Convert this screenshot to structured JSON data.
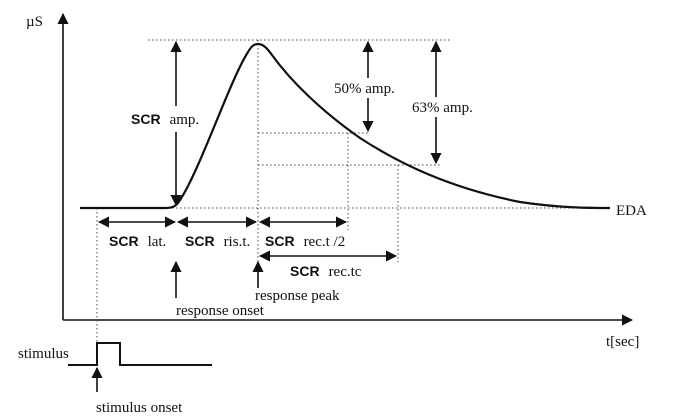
{
  "axis": {
    "y_label": "µS",
    "x_label": "t[sec]"
  },
  "curve": {
    "label": "EDA"
  },
  "labels": {
    "scr_amp": {
      "prefix": "SCR",
      "text": "amp."
    },
    "amp50": "50% amp.",
    "amp63": "63% amp.",
    "scr_lat": {
      "prefix": "SCR",
      "text": "lat."
    },
    "scr_ris": {
      "prefix": "SCR",
      "text": "ris.t."
    },
    "scr_rec2": {
      "prefix": "SCR",
      "text": "rec.t /2"
    },
    "scr_rectc": {
      "prefix": "SCR",
      "text": "rec.tc"
    },
    "response_onset": "response onset",
    "response_peak": "response peak",
    "stimulus": "stimulus",
    "stimulus_onset": "stimulus onset"
  }
}
